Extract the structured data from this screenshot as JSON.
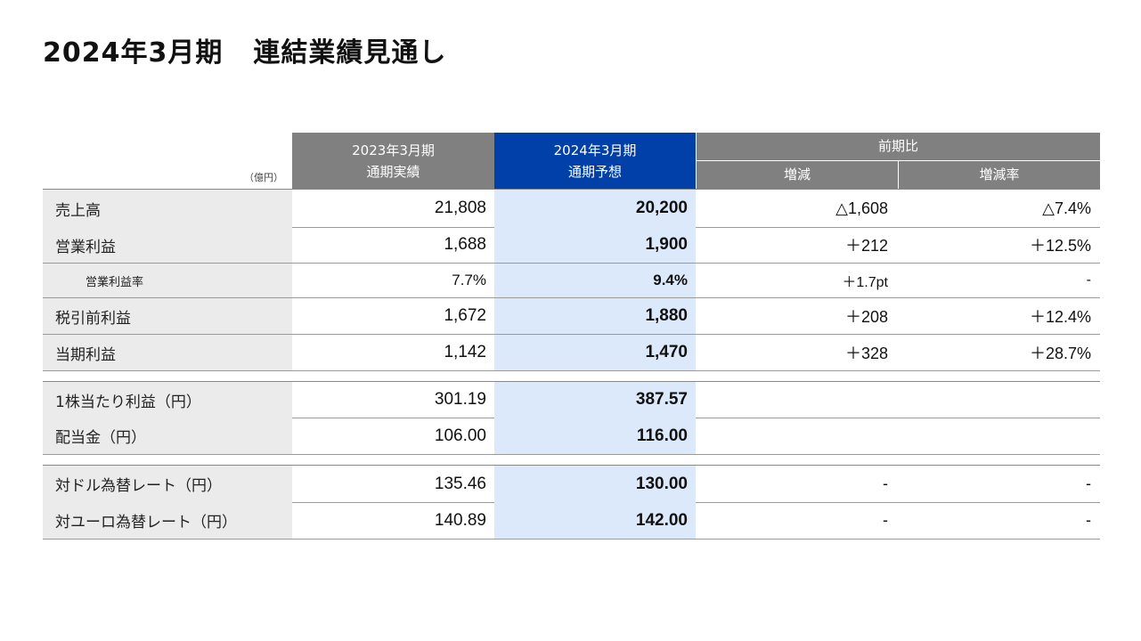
{
  "title": {
    "part1": "2024年3月期",
    "part2": "連結業績見通し"
  },
  "unit_label": "（億円）",
  "header": {
    "col_2023_line1": "2023年3月期",
    "col_2023_line2": "通期実績",
    "col_2024_line1": "2024年3月期",
    "col_2024_line2": "通期予想",
    "col_prev": "前期比",
    "col_increase": "増減",
    "col_rate": "増減率"
  },
  "rows": [
    {
      "label": "売上高",
      "v2023": "21,808",
      "v2024": "20,200",
      "inc": "△1,608",
      "rate": "△7.4%"
    },
    {
      "label": "営業利益",
      "v2023": "1,688",
      "v2024": "1,900",
      "inc": "＋212",
      "rate": "＋12.5%"
    },
    {
      "label": "営業利益率",
      "v2023": "7.7%",
      "v2024": "9.4%",
      "inc": "＋1.7pt",
      "rate": "-"
    },
    {
      "label": "税引前利益",
      "v2023": "1,672",
      "v2024": "1,880",
      "inc": "＋208",
      "rate": "＋12.4%"
    },
    {
      "label": "当期利益",
      "v2023": "1,142",
      "v2024": "1,470",
      "inc": "＋328",
      "rate": "＋28.7%"
    },
    {
      "label": "1株当たり利益（円）",
      "v2023": "301.19",
      "v2024": "387.57",
      "inc": "",
      "rate": ""
    },
    {
      "label": "配当金（円）",
      "v2023": "106.00",
      "v2024": "116.00",
      "inc": "",
      "rate": ""
    },
    {
      "label": "対ドル為替レート（円）",
      "v2023": "135.46",
      "v2024": "130.00",
      "inc": "-",
      "rate": "-"
    },
    {
      "label": "対ユーロ為替レート（円）",
      "v2023": "140.89",
      "v2024": "142.00",
      "inc": "-",
      "rate": "-"
    }
  ]
}
